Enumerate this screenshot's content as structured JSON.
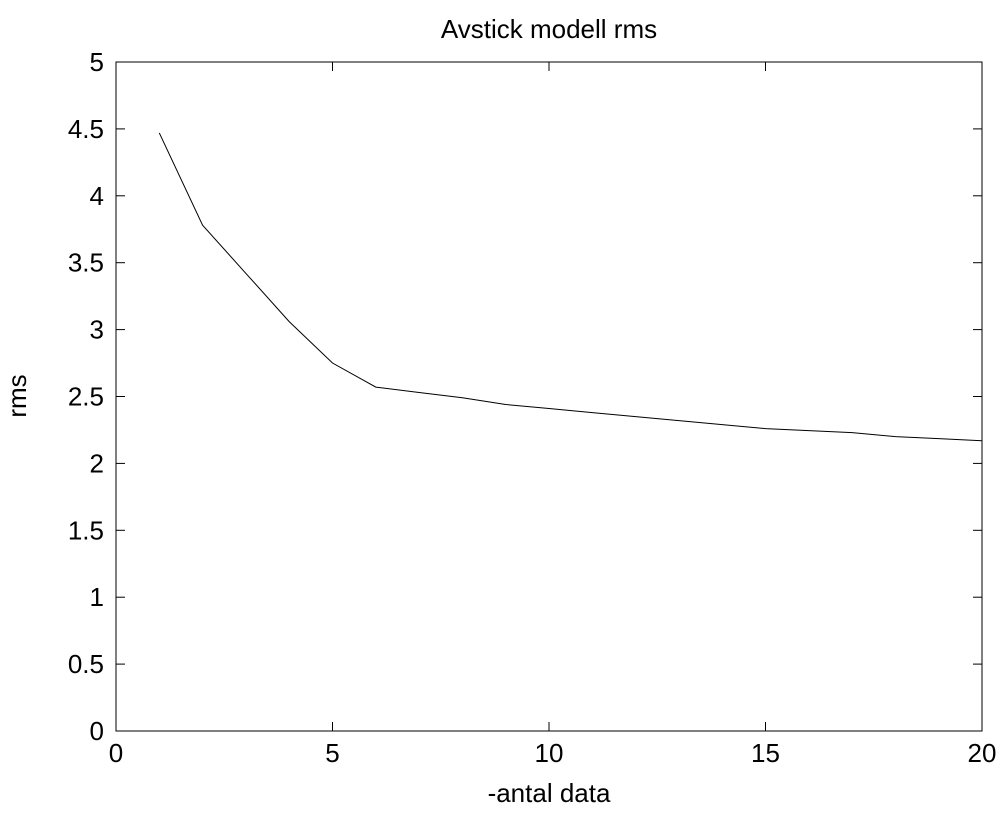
{
  "chart_data": {
    "type": "line",
    "title": "Avstick modell rms",
    "xlabel": "-antal data",
    "ylabel": "rms",
    "xlim": [
      0,
      20
    ],
    "ylim": [
      0,
      5
    ],
    "xticks": [
      0,
      5,
      10,
      15,
      20
    ],
    "yticks": [
      0,
      0.5,
      1,
      1.5,
      2,
      2.5,
      3,
      3.5,
      4,
      4.5,
      5
    ],
    "xtick_labels": [
      "0",
      "5",
      "10",
      "15",
      "20"
    ],
    "ytick_labels": [
      "0",
      "0.5",
      "1",
      "1.5",
      "2",
      "2.5",
      "3",
      "3.5",
      "4",
      "4.5",
      "5"
    ],
    "grid": false,
    "line_color": "#000000",
    "series": [
      {
        "x": [
          1,
          2,
          3,
          4,
          5,
          6,
          7,
          8,
          9,
          10,
          11,
          12,
          13,
          14,
          15,
          16,
          17,
          18,
          19,
          20
        ],
        "y": [
          4.47,
          3.78,
          3.42,
          3.06,
          2.75,
          2.57,
          2.53,
          2.49,
          2.44,
          2.41,
          2.38,
          2.35,
          2.32,
          2.29,
          2.26,
          2.245,
          2.23,
          2.2,
          2.185,
          2.17
        ]
      }
    ]
  }
}
